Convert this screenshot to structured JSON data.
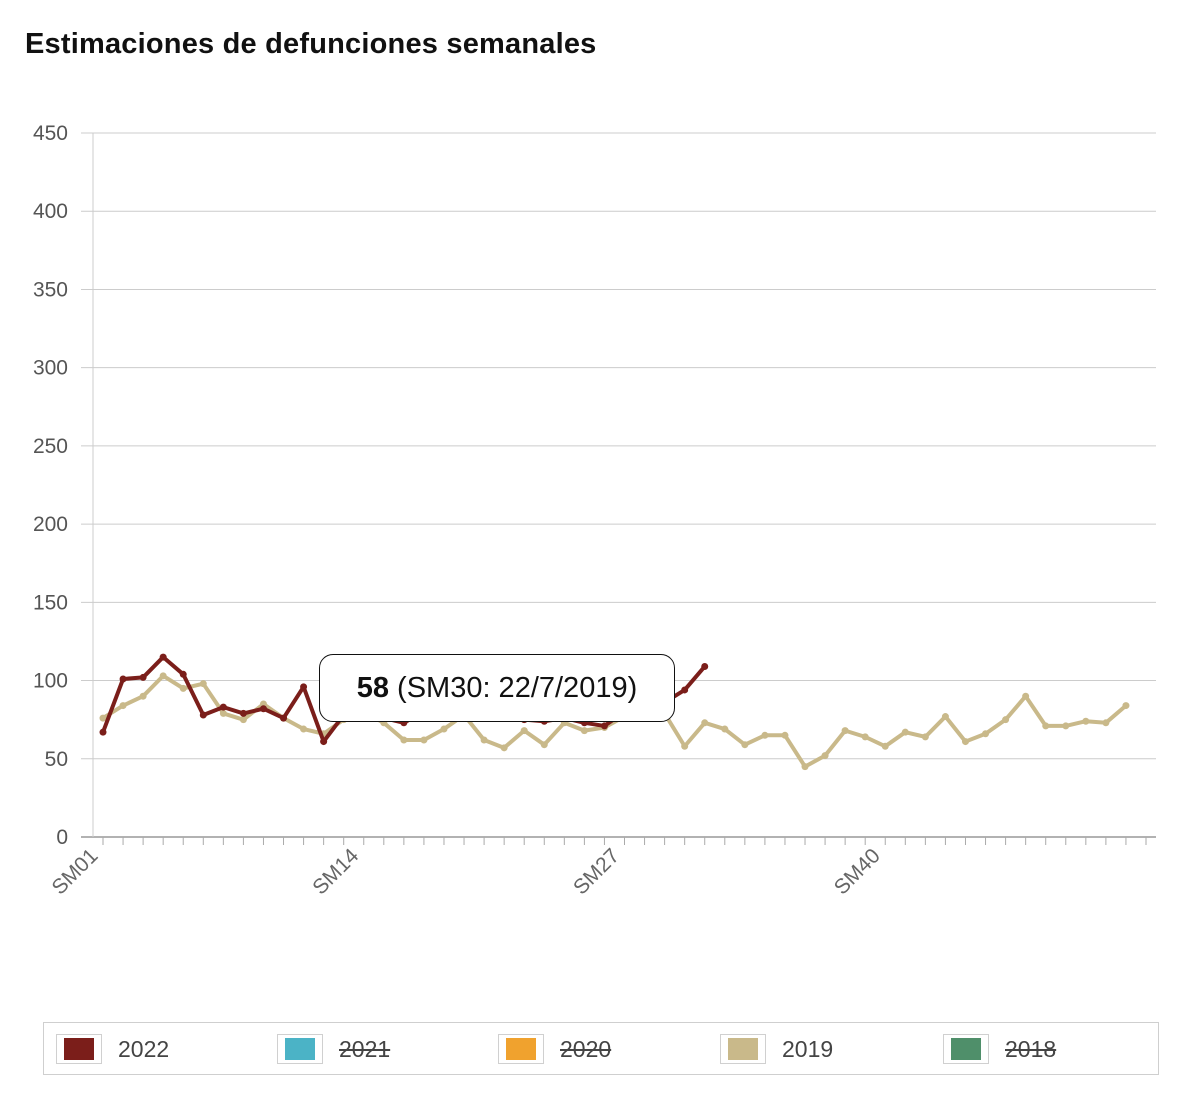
{
  "title": "Estimaciones de defunciones semanales",
  "chart_data": {
    "type": "line",
    "title": "Estimaciones de defunciones semanales",
    "xlabel": "",
    "ylabel": "",
    "ylim": [
      0,
      450
    ],
    "yticks": [
      "0",
      "50",
      "100",
      "150",
      "200",
      "250",
      "300",
      "350",
      "400",
      "450"
    ],
    "xtick_labels": [
      "SM01",
      "SM14",
      "SM27",
      "SM40"
    ],
    "xtick_weeks": [
      1,
      14,
      27,
      40
    ],
    "num_weeks": 53,
    "grid": true,
    "legend_position": "bottom",
    "series": [
      {
        "name": "2022",
        "color": "#7b1e1a",
        "visible": true,
        "values": [
          67,
          101,
          102,
          115,
          104,
          78,
          83,
          79,
          82,
          76,
          96,
          61,
          78,
          78,
          76,
          73,
          80,
          84,
          86,
          80,
          78,
          75,
          74,
          76,
          73,
          71,
          80,
          82,
          86,
          94,
          109
        ]
      },
      {
        "name": "2021",
        "color": "#4bb3c6",
        "visible": false,
        "values": []
      },
      {
        "name": "2020",
        "color": "#f0a22e",
        "visible": false,
        "values": []
      },
      {
        "name": "2019",
        "color": "#c9b98a",
        "visible": true,
        "values": [
          76,
          84,
          90,
          103,
          95,
          98,
          79,
          75,
          85,
          76,
          69,
          66,
          75,
          80,
          73,
          62,
          62,
          69,
          78,
          62,
          57,
          68,
          59,
          73,
          68,
          70,
          77,
          82,
          79,
          58,
          73,
          69,
          59,
          65,
          65,
          45,
          52,
          68,
          64,
          58,
          67,
          64,
          77,
          61,
          66,
          75,
          90,
          71,
          71,
          74,
          73,
          84
        ]
      },
      {
        "name": "2018",
        "color": "#4f8f6a",
        "visible": false,
        "values": []
      }
    ],
    "tooltip": {
      "value": "58",
      "detail": "(SM30: 22/7/2019)"
    }
  }
}
